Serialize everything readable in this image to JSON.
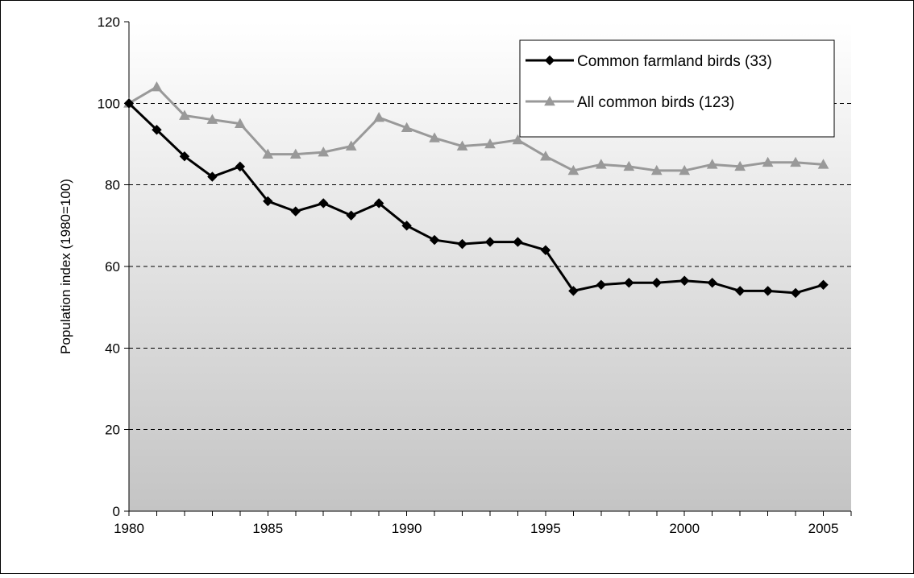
{
  "chart_data": {
    "type": "line",
    "title": "",
    "xlabel": "",
    "ylabel": "Population index (1980=100)",
    "xlim": [
      1980,
      2006
    ],
    "ylim": [
      0,
      120
    ],
    "x_ticks": [
      "1980",
      "1985",
      "1990",
      "1995",
      "2000",
      "2005"
    ],
    "y_ticks": [
      "0",
      "20",
      "40",
      "60",
      "80",
      "100",
      "120"
    ],
    "grid": "horizontal dashed",
    "legend_position": "top-right",
    "x": [
      1980,
      1981,
      1982,
      1983,
      1984,
      1985,
      1986,
      1987,
      1988,
      1989,
      1990,
      1991,
      1992,
      1993,
      1994,
      1995,
      1996,
      1997,
      1998,
      1999,
      2000,
      2001,
      2002,
      2003,
      2004,
      2005
    ],
    "series": [
      {
        "name": "Common farmland birds (33)",
        "color": "#000000",
        "marker": "diamond",
        "values": [
          100,
          93.5,
          87,
          82,
          84.5,
          76,
          73.5,
          75.5,
          72.5,
          75.5,
          70,
          66.5,
          65.5,
          66,
          66,
          64,
          54,
          55.5,
          56,
          56,
          56.5,
          56,
          54,
          54,
          53.5,
          55.5
        ]
      },
      {
        "name": "All common birds (123)",
        "color": "#999999",
        "marker": "triangle",
        "values": [
          100,
          104,
          97,
          96,
          95,
          87.5,
          87.5,
          88,
          89.5,
          96.5,
          94,
          91.5,
          89.5,
          90,
          91,
          87,
          83.5,
          85,
          84.5,
          83.5,
          83.5,
          85,
          84.5,
          85.5,
          85.5,
          85
        ]
      }
    ]
  }
}
